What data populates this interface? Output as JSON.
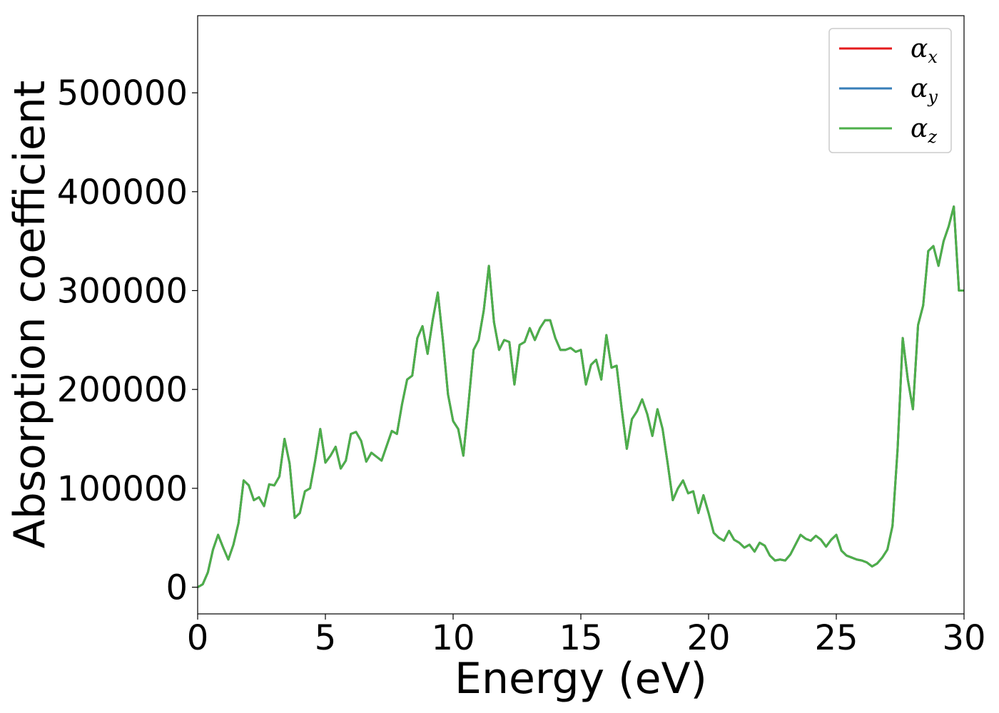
{
  "chart_data": {
    "type": "line",
    "xlabel": "Energy (eV)",
    "ylabel": "Absorption coefficient",
    "xlim": [
      0,
      30
    ],
    "ylim": [
      -27000,
      578000
    ],
    "xticks": [
      0,
      5,
      10,
      15,
      20,
      25,
      30
    ],
    "yticks": [
      0,
      100000,
      200000,
      300000,
      400000,
      500000
    ],
    "xtick_labels": [
      "0",
      "5",
      "10",
      "15",
      "20",
      "25",
      "30"
    ],
    "ytick_labels": [
      "0",
      "100000",
      "200000",
      "300000",
      "400000",
      "500000"
    ],
    "grid": false,
    "legend_position": "top-right",
    "x": [
      0,
      0.2,
      0.4,
      0.6,
      0.8,
      1.0,
      1.2,
      1.4,
      1.6,
      1.8,
      2.0,
      2.2,
      2.4,
      2.6,
      2.8,
      3.0,
      3.2,
      3.4,
      3.6,
      3.8,
      4.0,
      4.2,
      4.4,
      4.6,
      4.8,
      5.0,
      5.2,
      5.4,
      5.6,
      5.8,
      6.0,
      6.2,
      6.4,
      6.6,
      6.8,
      7.0,
      7.2,
      7.4,
      7.6,
      7.8,
      8.0,
      8.2,
      8.4,
      8.6,
      8.8,
      9.0,
      9.2,
      9.4,
      9.6,
      9.8,
      10.0,
      10.2,
      10.4,
      10.6,
      10.8,
      11.0,
      11.2,
      11.4,
      11.6,
      11.8,
      12.0,
      12.2,
      12.4,
      12.6,
      12.8,
      13.0,
      13.2,
      13.4,
      13.6,
      13.8,
      14.0,
      14.2,
      14.4,
      14.6,
      14.8,
      15.0,
      15.2,
      15.4,
      15.6,
      15.8,
      16.0,
      16.2,
      16.4,
      16.6,
      16.8,
      17.0,
      17.2,
      17.4,
      17.6,
      17.8,
      18.0,
      18.2,
      18.4,
      18.6,
      18.8,
      19.0,
      19.2,
      19.4,
      19.6,
      19.8,
      20.0,
      20.2,
      20.4,
      20.6,
      20.8,
      21.0,
      21.2,
      21.4,
      21.6,
      21.8,
      22.0,
      22.2,
      22.4,
      22.6,
      22.8,
      23.0,
      23.2,
      23.4,
      23.6,
      23.8,
      24.0,
      24.2,
      24.4,
      24.6,
      24.8,
      25.0,
      25.2,
      25.4,
      25.6,
      25.8,
      26.0,
      26.2,
      26.4,
      26.6,
      26.8,
      27.0,
      27.2,
      27.4,
      27.6,
      27.8,
      28.0,
      28.2,
      28.4,
      28.6,
      28.8,
      29.0,
      29.2,
      29.4,
      29.6,
      29.8,
      30.0
    ],
    "series": [
      {
        "name": "α_x",
        "label_main": "α",
        "label_sub": "x",
        "color": "#e41a1c",
        "y": [
          0,
          3000,
          15000,
          38000,
          53000,
          40000,
          28000,
          43000,
          65000,
          108000,
          103000,
          88000,
          91000,
          82000,
          104000,
          103000,
          112000,
          150000,
          125000,
          70000,
          75000,
          97000,
          100000,
          128000,
          160000,
          126000,
          133000,
          142000,
          120000,
          128000,
          155000,
          157000,
          148000,
          127000,
          136000,
          132000,
          128000,
          143000,
          158000,
          155000,
          185000,
          210000,
          214000,
          252000,
          264000,
          236000,
          270000,
          298000,
          250000,
          195000,
          168000,
          160000,
          133000,
          185000,
          240000,
          250000,
          280000,
          325000,
          268000,
          240000,
          250000,
          248000,
          205000,
          245000,
          248000,
          262000,
          250000,
          262000,
          270000,
          270000,
          252000,
          240000,
          240000,
          242000,
          238000,
          240000,
          205000,
          225000,
          230000,
          210000,
          255000,
          222000,
          224000,
          180000,
          140000,
          170000,
          178000,
          190000,
          175000,
          153000,
          180000,
          160000,
          125000,
          88000,
          100000,
          108000,
          95000,
          97000,
          75000,
          93000,
          75000,
          55000,
          50000,
          47000,
          57000,
          48000,
          45000,
          40000,
          43000,
          36000,
          45000,
          42000,
          32000,
          27000,
          28000,
          27000,
          33000,
          43000,
          53000,
          49000,
          47000,
          52000,
          48000,
          41000,
          48000,
          53000,
          37000,
          32000,
          30000,
          28000,
          27000,
          25000,
          21000,
          24000,
          30000,
          38000,
          62000,
          140000,
          252000,
          210000,
          180000,
          265000,
          285000,
          340000,
          345000,
          325000,
          350000,
          365000,
          385000,
          300000,
          300000
        ]
      },
      {
        "name": "α_y",
        "label_main": "α",
        "label_sub": "y",
        "color": "#377eb8",
        "y": [
          0,
          3000,
          15000,
          38000,
          53000,
          40000,
          28000,
          43000,
          65000,
          108000,
          103000,
          88000,
          91000,
          82000,
          104000,
          103000,
          112000,
          150000,
          125000,
          70000,
          75000,
          97000,
          100000,
          128000,
          160000,
          126000,
          133000,
          142000,
          120000,
          128000,
          155000,
          157000,
          148000,
          127000,
          136000,
          132000,
          128000,
          143000,
          158000,
          155000,
          185000,
          210000,
          214000,
          252000,
          264000,
          236000,
          270000,
          298000,
          250000,
          195000,
          168000,
          160000,
          133000,
          185000,
          240000,
          250000,
          280000,
          325000,
          268000,
          240000,
          250000,
          248000,
          205000,
          245000,
          248000,
          262000,
          250000,
          262000,
          270000,
          270000,
          252000,
          240000,
          240000,
          242000,
          238000,
          240000,
          205000,
          225000,
          230000,
          210000,
          255000,
          222000,
          224000,
          180000,
          140000,
          170000,
          178000,
          190000,
          175000,
          153000,
          180000,
          160000,
          125000,
          88000,
          100000,
          108000,
          95000,
          97000,
          75000,
          93000,
          75000,
          55000,
          50000,
          47000,
          57000,
          48000,
          45000,
          40000,
          43000,
          36000,
          45000,
          42000,
          32000,
          27000,
          28000,
          27000,
          33000,
          43000,
          53000,
          49000,
          47000,
          52000,
          48000,
          41000,
          48000,
          53000,
          37000,
          32000,
          30000,
          28000,
          27000,
          25000,
          21000,
          24000,
          30000,
          38000,
          62000,
          140000,
          252000,
          210000,
          180000,
          265000,
          285000,
          340000,
          345000,
          325000,
          350000,
          365000,
          385000,
          300000,
          300000
        ]
      },
      {
        "name": "α_z",
        "label_main": "α",
        "label_sub": "z",
        "color": "#4daf4a",
        "y": [
          0,
          3000,
          15000,
          38000,
          53000,
          40000,
          28000,
          43000,
          65000,
          108000,
          103000,
          88000,
          91000,
          82000,
          104000,
          103000,
          112000,
          150000,
          125000,
          70000,
          75000,
          97000,
          100000,
          128000,
          160000,
          126000,
          133000,
          142000,
          120000,
          128000,
          155000,
          157000,
          148000,
          127000,
          136000,
          132000,
          128000,
          143000,
          158000,
          155000,
          185000,
          210000,
          214000,
          252000,
          264000,
          236000,
          270000,
          298000,
          250000,
          195000,
          168000,
          160000,
          133000,
          185000,
          240000,
          250000,
          280000,
          325000,
          268000,
          240000,
          250000,
          248000,
          205000,
          245000,
          248000,
          262000,
          250000,
          262000,
          270000,
          270000,
          252000,
          240000,
          240000,
          242000,
          238000,
          240000,
          205000,
          225000,
          230000,
          210000,
          255000,
          222000,
          224000,
          180000,
          140000,
          170000,
          178000,
          190000,
          175000,
          153000,
          180000,
          160000,
          125000,
          88000,
          100000,
          108000,
          95000,
          97000,
          75000,
          93000,
          75000,
          55000,
          50000,
          47000,
          57000,
          48000,
          45000,
          40000,
          43000,
          36000,
          45000,
          42000,
          32000,
          27000,
          28000,
          27000,
          33000,
          43000,
          53000,
          49000,
          47000,
          52000,
          48000,
          41000,
          48000,
          53000,
          37000,
          32000,
          30000,
          28000,
          27000,
          25000,
          21000,
          24000,
          30000,
          38000,
          62000,
          140000,
          252000,
          210000,
          180000,
          265000,
          285000,
          340000,
          345000,
          325000,
          350000,
          365000,
          385000,
          300000,
          300000
        ]
      }
    ]
  }
}
